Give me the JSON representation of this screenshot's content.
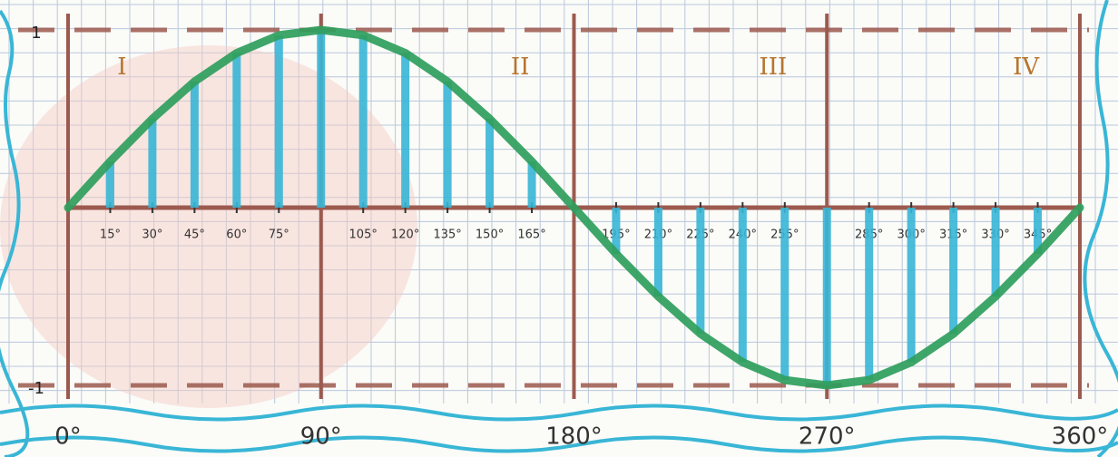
{
  "chart_data": {
    "type": "line",
    "x": [
      0,
      15,
      30,
      45,
      60,
      75,
      90,
      105,
      120,
      135,
      150,
      165,
      180,
      195,
      210,
      225,
      240,
      255,
      270,
      285,
      300,
      315,
      330,
      345,
      360
    ],
    "values": [
      0,
      0.26,
      0.5,
      0.71,
      0.87,
      0.97,
      1,
      0.97,
      0.87,
      0.71,
      0.5,
      0.26,
      0,
      -0.26,
      -0.5,
      -0.71,
      -0.87,
      -0.97,
      -1,
      -0.97,
      -0.87,
      -0.71,
      -0.5,
      -0.26,
      0
    ],
    "color": "#2f9e5c",
    "stem_color": "#39b6d6",
    "xlim": [
      0,
      360
    ],
    "xticks": [
      {
        "value": 0,
        "label": "0°"
      },
      {
        "value": 90,
        "label": "90°"
      },
      {
        "value": 180,
        "label": "180°"
      },
      {
        "value": 270,
        "label": "270°"
      },
      {
        "value": 360,
        "label": "360°"
      }
    ],
    "minor_xticks": [
      {
        "value": 15,
        "label": "15°"
      },
      {
        "value": 30,
        "label": "30°"
      },
      {
        "value": 45,
        "label": "45°"
      },
      {
        "value": 60,
        "label": "60°"
      },
      {
        "value": 75,
        "label": "75°"
      },
      {
        "value": 105,
        "label": "105°"
      },
      {
        "value": 120,
        "label": "120°"
      },
      {
        "value": 135,
        "label": "135°"
      },
      {
        "value": 150,
        "label": "150°"
      },
      {
        "value": 165,
        "label": "165°"
      },
      {
        "value": 195,
        "label": "195°"
      },
      {
        "value": 210,
        "label": "210°"
      },
      {
        "value": 225,
        "label": "225°"
      },
      {
        "value": 240,
        "label": "240°"
      },
      {
        "value": 255,
        "label": "255°"
      },
      {
        "value": 285,
        "label": "285°"
      },
      {
        "value": 300,
        "label": "300°"
      },
      {
        "value": 315,
        "label": "315°"
      },
      {
        "value": 330,
        "label": "330°"
      },
      {
        "value": 345,
        "label": "345°"
      }
    ],
    "ylim": [
      -1,
      1
    ],
    "yticks": [
      -1,
      1
    ],
    "quadrant_labels": [
      "I",
      "II",
      "III",
      "IV"
    ],
    "grid": true
  }
}
